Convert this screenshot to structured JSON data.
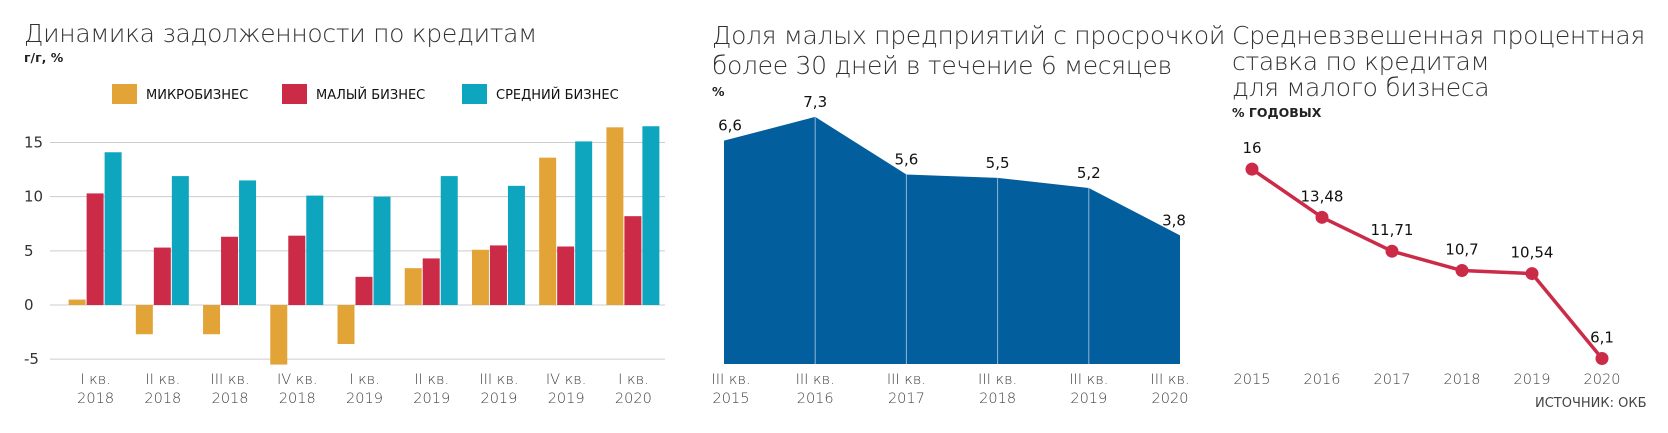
{
  "charts": [
    {
      "title": "Динамика задолженности по кредитам",
      "unit": "г/г, %"
    },
    {
      "title_line1": "Доля малых предприятий с просрочкой",
      "title_line2": "более 30 дней в течение 6 месяцев",
      "unit": "%"
    },
    {
      "title_line1": "Средневзвешенная процентная",
      "title_line2": "ставка по кредитам",
      "title_line3": "для малого бизнеса",
      "unit": "% ГОДОВЫХ"
    }
  ],
  "source": "ИСТОЧНИК: ОКБ",
  "colors": {
    "micro": "#e3a437",
    "small": "#cc2b48",
    "medium": "#0ea6bf",
    "area": "#035e9e",
    "line": "#cc2b48",
    "grid": "#cccccc"
  },
  "chart_data": [
    {
      "type": "bar",
      "title": "Динамика задолженности по кредитам",
      "ylabel": "г/г, %",
      "ylim": [
        -6,
        18
      ],
      "yticks": [
        "15",
        "10",
        "5",
        "0",
        "-5"
      ],
      "ytick_values": [
        15,
        10,
        5,
        0,
        -5
      ],
      "grid": true,
      "legend": "top",
      "categories": [
        [
          "I кв.",
          "2018"
        ],
        [
          "II кв.",
          "2018"
        ],
        [
          "III кв.",
          "2018"
        ],
        [
          "IV кв.",
          "2018"
        ],
        [
          "I кв.",
          "2019"
        ],
        [
          "II кв.",
          "2019"
        ],
        [
          "III кв.",
          "2019"
        ],
        [
          "IV кв.",
          "2019"
        ],
        [
          "I кв.",
          "2020"
        ]
      ],
      "series": [
        {
          "name": "МИКРОБИЗНЕС",
          "color_key": "micro",
          "values": [
            0.5,
            -2.7,
            -2.7,
            -5.5,
            -3.6,
            3.4,
            5.1,
            13.6,
            16.4
          ]
        },
        {
          "name": "МАЛЫЙ БИЗНЕС",
          "color_key": "small",
          "values": [
            10.3,
            5.3,
            6.3,
            6.4,
            2.6,
            4.3,
            5.5,
            5.4,
            8.2
          ]
        },
        {
          "name": "СРЕДНИЙ БИЗНЕС",
          "color_key": "medium",
          "values": [
            14.1,
            11.9,
            11.5,
            10.1,
            10.0,
            11.9,
            11.0,
            15.1,
            16.5
          ]
        }
      ]
    },
    {
      "type": "area",
      "title": "Доля малых предприятий с просрочкой более 30 дней в течение 6 месяцев",
      "ylabel": "%",
      "ylim": [
        0,
        7.8
      ],
      "categories": [
        [
          "III кв.",
          "2015"
        ],
        [
          "III кв.",
          "2016"
        ],
        [
          "III кв.",
          "2017"
        ],
        [
          "III кв.",
          "2018"
        ],
        [
          "III кв.",
          "2019"
        ],
        [
          "III кв.",
          "2020"
        ]
      ],
      "values": [
        6.6,
        7.3,
        5.6,
        5.5,
        5.2,
        3.8
      ],
      "labels": [
        "6,6",
        "7,3",
        "5,6",
        "5,5",
        "5,2",
        "3,8"
      ]
    },
    {
      "type": "line",
      "title": "Средневзвешенная процентная ставка по кредитам для малого бизнеса",
      "ylabel": "% ГОДОВЫХ",
      "ylim": [
        5.5,
        17
      ],
      "categories": [
        "2015",
        "2016",
        "2017",
        "2018",
        "2019",
        "2020"
      ],
      "values": [
        16,
        13.48,
        11.71,
        10.7,
        10.54,
        6.1
      ],
      "labels": [
        "16",
        "13,48",
        "11,71",
        "10,7",
        "10,54",
        "6,1"
      ]
    }
  ]
}
